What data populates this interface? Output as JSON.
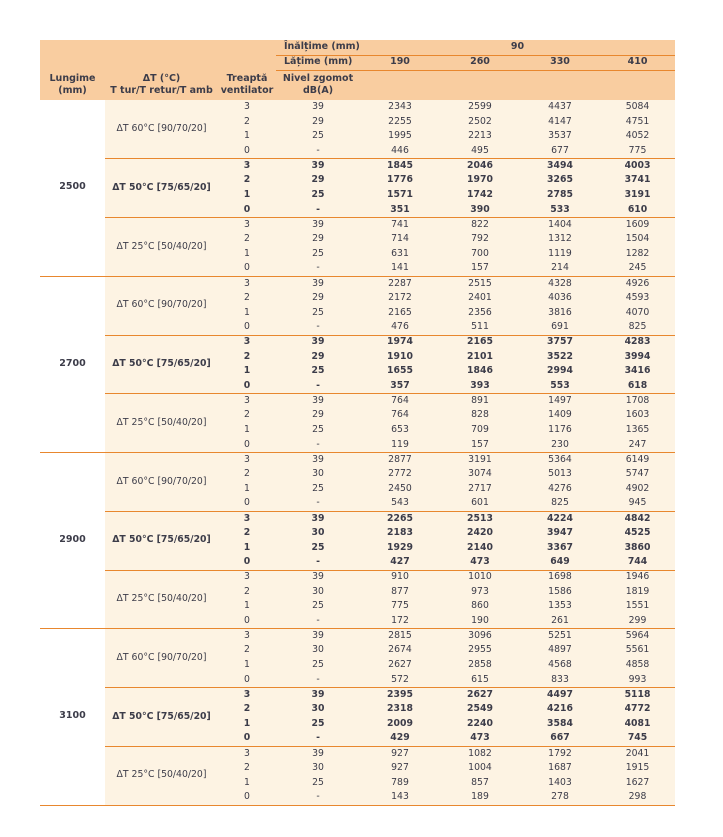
{
  "colors": {
    "accent_orange": "#e8872e",
    "header_bg": "#f9cda0",
    "row_bg": "#fdf3e3",
    "text": "#3c3c49"
  },
  "table": {
    "header": {
      "height_label": "Înălțime (mm)",
      "height_value": "90",
      "width_label": "Lățime (mm)",
      "width_values": [
        "190",
        "260",
        "330",
        "410"
      ],
      "col_length": "Lungime\n(mm)",
      "col_delta_t": "ΔT (°C)\nT tur/T retur/T amb",
      "col_fan_step": "Treaptă\nventilator",
      "col_noise": "Nivel zgomot\ndB(A)"
    },
    "groups": [
      {
        "length": "2500",
        "sections": [
          {
            "label": "ΔT 60°C [90/70/20]",
            "bold": false,
            "rows": [
              [
                "3",
                "39",
                "2343",
                "2599",
                "4437",
                "5084"
              ],
              [
                "2",
                "29",
                "2255",
                "2502",
                "4147",
                "4751"
              ],
              [
                "1",
                "25",
                "1995",
                "2213",
                "3537",
                "4052"
              ],
              [
                "0",
                "-",
                "446",
                "495",
                "677",
                "775"
              ]
            ]
          },
          {
            "label": "ΔT 50°C [75/65/20]",
            "bold": true,
            "rows": [
              [
                "3",
                "39",
                "1845",
                "2046",
                "3494",
                "4003"
              ],
              [
                "2",
                "29",
                "1776",
                "1970",
                "3265",
                "3741"
              ],
              [
                "1",
                "25",
                "1571",
                "1742",
                "2785",
                "3191"
              ],
              [
                "0",
                "-",
                "351",
                "390",
                "533",
                "610"
              ]
            ]
          },
          {
            "label": "ΔT 25°C [50/40/20]",
            "bold": false,
            "rows": [
              [
                "3",
                "39",
                "741",
                "822",
                "1404",
                "1609"
              ],
              [
                "2",
                "29",
                "714",
                "792",
                "1312",
                "1504"
              ],
              [
                "1",
                "25",
                "631",
                "700",
                "1119",
                "1282"
              ],
              [
                "0",
                "-",
                "141",
                "157",
                "214",
                "245"
              ]
            ]
          }
        ]
      },
      {
        "length": "2700",
        "sections": [
          {
            "label": "ΔT 60°C [90/70/20]",
            "bold": false,
            "rows": [
              [
                "3",
                "39",
                "2287",
                "2515",
                "4328",
                "4926"
              ],
              [
                "2",
                "29",
                "2172",
                "2401",
                "4036",
                "4593"
              ],
              [
                "1",
                "25",
                "2165",
                "2356",
                "3816",
                "4070"
              ],
              [
                "0",
                "-",
                "476",
                "511",
                "691",
                "825"
              ]
            ]
          },
          {
            "label": "ΔT 50°C [75/65/20]",
            "bold": true,
            "rows": [
              [
                "3",
                "39",
                "1974",
                "2165",
                "3757",
                "4283"
              ],
              [
                "2",
                "29",
                "1910",
                "2101",
                "3522",
                "3994"
              ],
              [
                "1",
                "25",
                "1655",
                "1846",
                "2994",
                "3416"
              ],
              [
                "0",
                "-",
                "357",
                "393",
                "553",
                "618"
              ]
            ]
          },
          {
            "label": "ΔT 25°C [50/40/20]",
            "bold": false,
            "rows": [
              [
                "3",
                "39",
                "764",
                "891",
                "1497",
                "1708"
              ],
              [
                "2",
                "29",
                "764",
                "828",
                "1409",
                "1603"
              ],
              [
                "1",
                "25",
                "653",
                "709",
                "1176",
                "1365"
              ],
              [
                "0",
                "-",
                "119",
                "157",
                "230",
                "247"
              ]
            ]
          }
        ]
      },
      {
        "length": "2900",
        "sections": [
          {
            "label": "ΔT 60°C [90/70/20]",
            "bold": false,
            "rows": [
              [
                "3",
                "39",
                "2877",
                "3191",
                "5364",
                "6149"
              ],
              [
                "2",
                "30",
                "2772",
                "3074",
                "5013",
                "5747"
              ],
              [
                "1",
                "25",
                "2450",
                "2717",
                "4276",
                "4902"
              ],
              [
                "0",
                "-",
                "543",
                "601",
                "825",
                "945"
              ]
            ]
          },
          {
            "label": "ΔT 50°C [75/65/20]",
            "bold": true,
            "rows": [
              [
                "3",
                "39",
                "2265",
                "2513",
                "4224",
                "4842"
              ],
              [
                "2",
                "30",
                "2183",
                "2420",
                "3947",
                "4525"
              ],
              [
                "1",
                "25",
                "1929",
                "2140",
                "3367",
                "3860"
              ],
              [
                "0",
                "-",
                "427",
                "473",
                "649",
                "744"
              ]
            ]
          },
          {
            "label": "ΔT 25°C [50/40/20]",
            "bold": false,
            "rows": [
              [
                "3",
                "39",
                "910",
                "1010",
                "1698",
                "1946"
              ],
              [
                "2",
                "30",
                "877",
                "973",
                "1586",
                "1819"
              ],
              [
                "1",
                "25",
                "775",
                "860",
                "1353",
                "1551"
              ],
              [
                "0",
                "-",
                "172",
                "190",
                "261",
                "299"
              ]
            ]
          }
        ]
      },
      {
        "length": "3100",
        "sections": [
          {
            "label": "ΔT 60°C [90/70/20]",
            "bold": false,
            "rows": [
              [
                "3",
                "39",
                "2815",
                "3096",
                "5251",
                "5964"
              ],
              [
                "2",
                "30",
                "2674",
                "2955",
                "4897",
                "5561"
              ],
              [
                "1",
                "25",
                "2627",
                "2858",
                "4568",
                "4858"
              ],
              [
                "0",
                "-",
                "572",
                "615",
                "833",
                "993"
              ]
            ]
          },
          {
            "label": "ΔT 50°C [75/65/20]",
            "bold": true,
            "rows": [
              [
                "3",
                "39",
                "2395",
                "2627",
                "4497",
                "5118"
              ],
              [
                "2",
                "30",
                "2318",
                "2549",
                "4216",
                "4772"
              ],
              [
                "1",
                "25",
                "2009",
                "2240",
                "3584",
                "4081"
              ],
              [
                "0",
                "-",
                "429",
                "473",
                "667",
                "745"
              ]
            ]
          },
          {
            "label": "ΔT 25°C [50/40/20]",
            "bold": false,
            "rows": [
              [
                "3",
                "39",
                "927",
                "1082",
                "1792",
                "2041"
              ],
              [
                "2",
                "30",
                "927",
                "1004",
                "1687",
                "1915"
              ],
              [
                "1",
                "25",
                "789",
                "857",
                "1403",
                "1627"
              ],
              [
                "0",
                "-",
                "143",
                "189",
                "278",
                "298"
              ]
            ]
          }
        ]
      }
    ]
  }
}
